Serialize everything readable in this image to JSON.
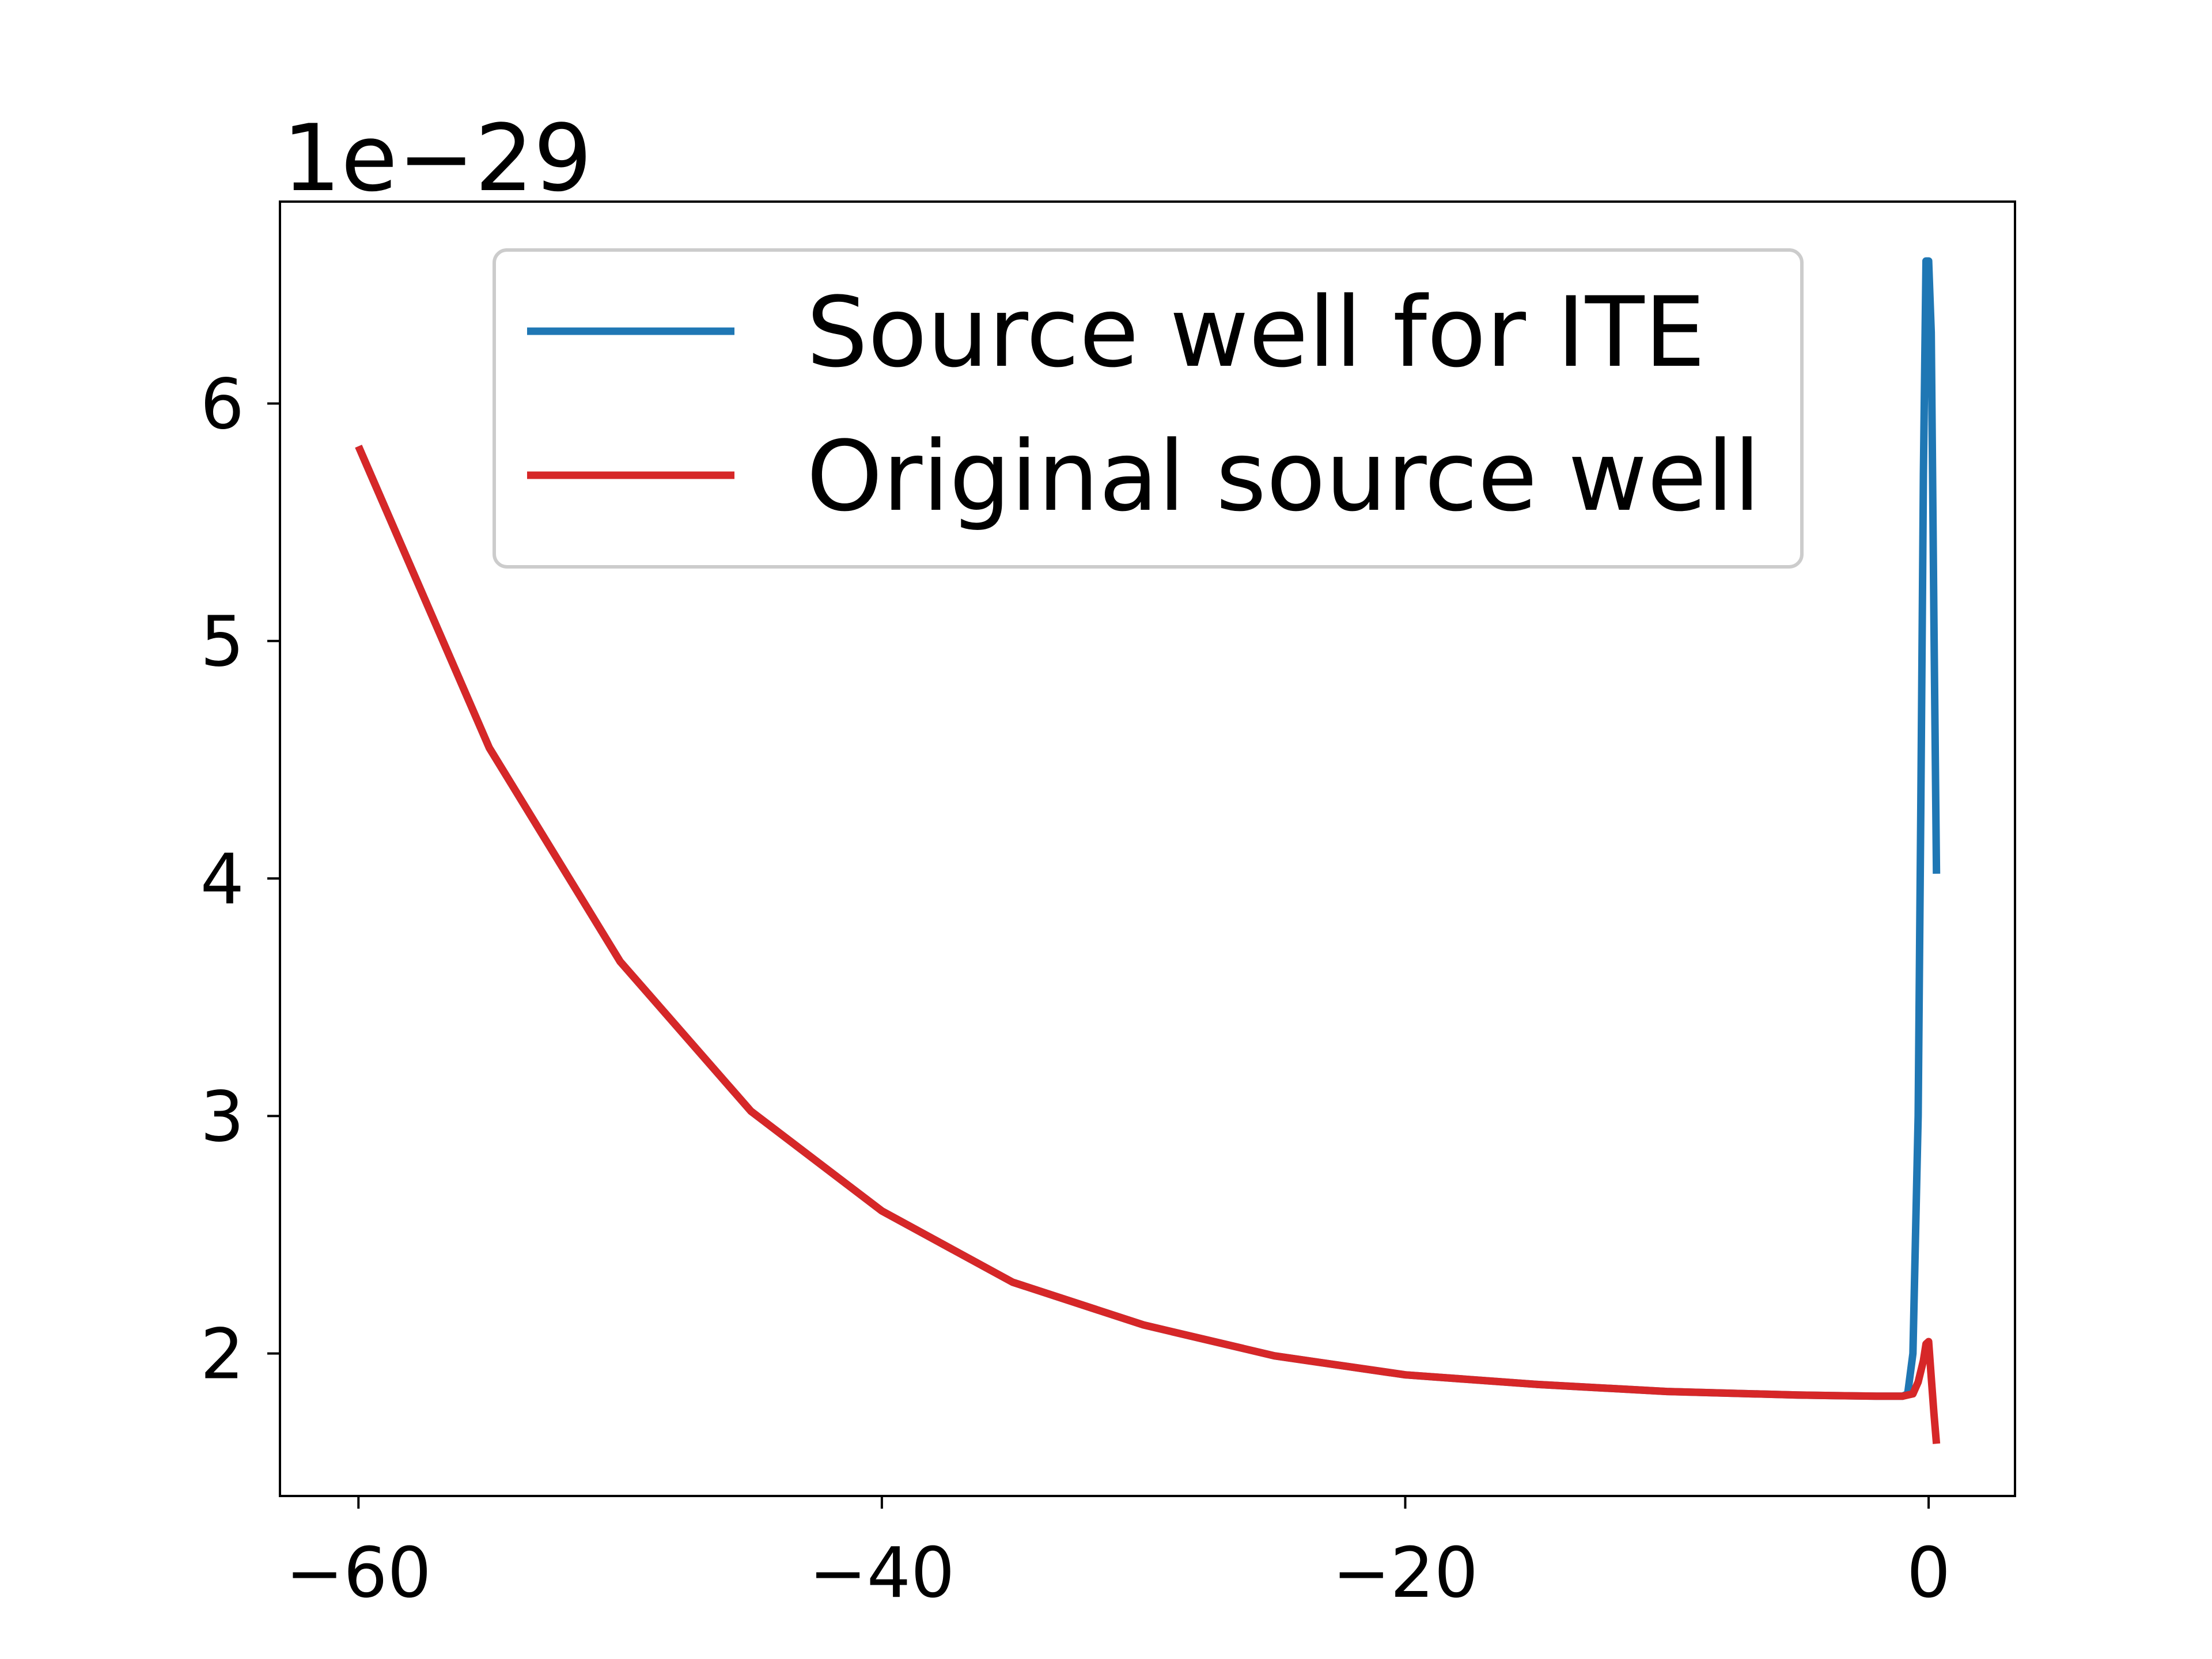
{
  "chart_data": {
    "type": "line",
    "title": "",
    "xlabel": "",
    "ylabel": "",
    "y_offset_label": "1e−29",
    "xlim": [
      -63,
      3.3
    ],
    "ylim": [
      1.4,
      6.85
    ],
    "xticks": [
      -60,
      -40,
      -20,
      0
    ],
    "xtick_labels": [
      "−60",
      "−40",
      "−20",
      "0"
    ],
    "yticks": [
      2,
      3,
      4,
      5,
      6
    ],
    "ytick_labels": [
      "2",
      "3",
      "4",
      "5",
      "6"
    ],
    "grid": false,
    "legend_position": "top-center",
    "series": [
      {
        "name": "Source well for ITE",
        "color": "#1f77b4",
        "x": [
          -60,
          -55,
          -50,
          -45,
          -40,
          -35,
          -30,
          -25,
          -20,
          -15,
          -10,
          -5,
          -2,
          -1,
          -0.8,
          -0.6,
          -0.4,
          -0.3,
          -0.2,
          -0.1,
          0,
          0.1,
          0.2,
          0.3
        ],
        "y": [
          5.82,
          4.55,
          3.65,
          3.02,
          2.6,
          2.3,
          2.12,
          1.99,
          1.91,
          1.87,
          1.84,
          1.825,
          1.82,
          1.82,
          1.83,
          2.0,
          3.0,
          4.3,
          5.7,
          6.6,
          6.6,
          6.3,
          5.1,
          4.02
        ]
      },
      {
        "name": "Original source well",
        "color": "#d62728",
        "x": [
          -60,
          -55,
          -50,
          -45,
          -40,
          -35,
          -30,
          -25,
          -20,
          -15,
          -10,
          -5,
          -2,
          -1,
          -0.6,
          -0.4,
          -0.2,
          -0.1,
          0,
          0.1,
          0.2,
          0.3
        ],
        "y": [
          5.82,
          4.55,
          3.65,
          3.02,
          2.6,
          2.3,
          2.12,
          1.99,
          1.91,
          1.87,
          1.84,
          1.825,
          1.82,
          1.82,
          1.83,
          1.88,
          1.97,
          2.04,
          2.05,
          1.9,
          1.75,
          1.62
        ]
      }
    ]
  }
}
